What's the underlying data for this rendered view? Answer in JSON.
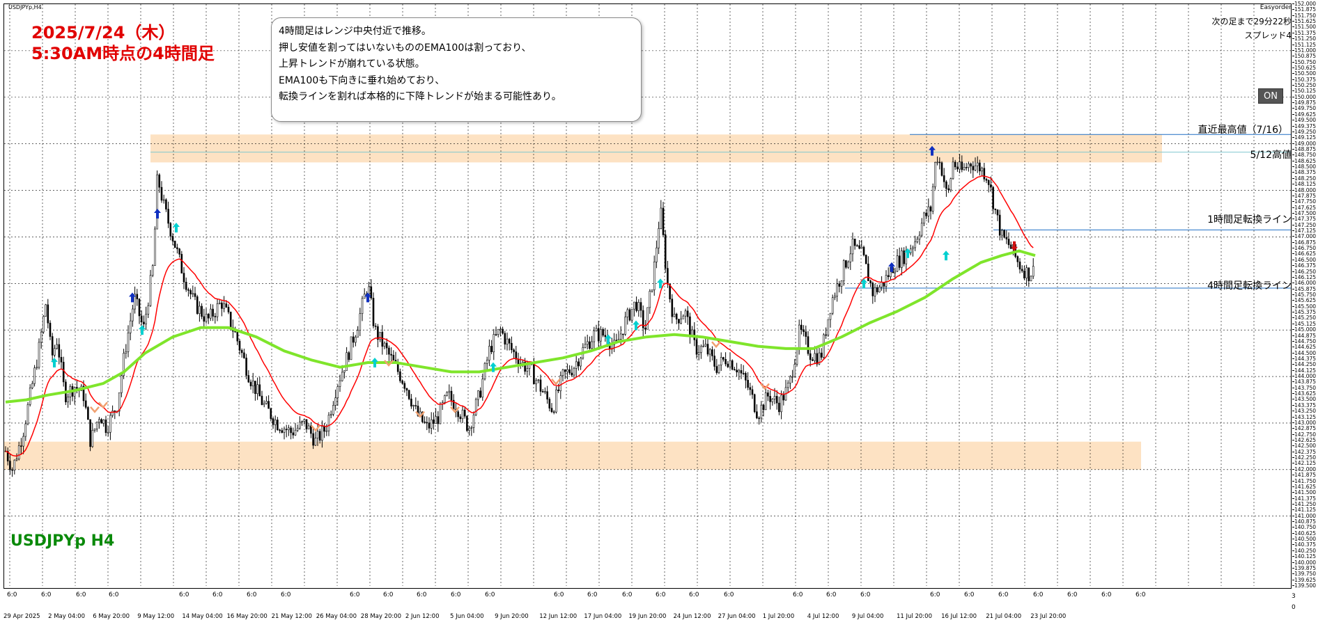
{
  "symbol_small": "USDJPYp,H4",
  "symbol_name": "USDJPYp H4",
  "date_overlay": {
    "line1": "2025/7/24（木）",
    "line2": "5:30AM時点の4時間足"
  },
  "note": {
    "lines": [
      "4時間足はレンジ中央付近で推移。",
      "押し安値を割ってはいないもののEMA100は割っており、",
      "上昇トレンドが崩れている状態。",
      "EMA100も下向きに垂れ始めており、",
      "転換ラインを割れば本格的に下降トレンドが始まる可能性あり。"
    ]
  },
  "top_right": {
    "brand": "Easyorder",
    "next_bar": "次の足まで29分22秒",
    "spread": "スプレッド4"
  },
  "on_button": "ON",
  "line_labels": {
    "recent_high": "直近最高値（7/16）",
    "may12_high": "5/12高値",
    "h1_turn": "1時間足転換ライン",
    "h4_turn": "4時間足転換ライン"
  },
  "colors": {
    "candle": "#000000",
    "ema_fast": "#ff0000",
    "ema100": "#7fe52b",
    "zone": "#fde2c3",
    "level_line": "#1f6fc4",
    "date_text": "#e10000",
    "symbol_text": "#0a8a0a"
  },
  "price_axis": {
    "top": "152.000",
    "bottom": "139.500",
    "step": 0.125
  },
  "time_axis": {
    "top_labels": [
      "6:0",
      "6:0",
      "6:0",
      "6:0",
      "6:0",
      "6:0",
      "6:0",
      "6:0",
      "6:0",
      "6:0",
      "6:0",
      "6:0",
      "6:0",
      "6:0",
      "6:0",
      "6:0",
      "6:0",
      "6:0",
      "6:0",
      "6:0",
      "6:0",
      "6:0",
      "6:0",
      "6:0",
      "6:0",
      "6:0",
      "6:0",
      "6:0",
      "6:0"
    ],
    "bottom_labels": [
      "29 Apr 2025",
      "2 May 04:00",
      "6 May 20:00",
      "9 May 12:00",
      "14 May 04:00",
      "16 May 20:00",
      "21 May 12:00",
      "26 May 04:00",
      "28 May 20:00",
      "2 Jun 12:00",
      "5 Jun 04:00",
      "9 Jun 20:00",
      "12 Jun 12:00",
      "17 Jun 04:00",
      "19 Jun 20:00",
      "24 Jun 12:00",
      "27 Jun 04:00",
      "1 Jul 20:00",
      "4 Jul 12:00",
      "9 Jul 04:00",
      "11 Jul 20:00",
      "16 Jul 12:00",
      "21 Jul 04:00",
      "23 Jul 20:00"
    ],
    "right_numbers": [
      "3",
      "0"
    ]
  },
  "chart_data": {
    "type": "candlestick",
    "title": "",
    "ylim": [
      139.5,
      152.0
    ],
    "close_path": [
      [
        0,
        142.4
      ],
      [
        10,
        142.0
      ],
      [
        25,
        142.8
      ],
      [
        38,
        143.8
      ],
      [
        48,
        144.6
      ],
      [
        58,
        145.6
      ],
      [
        66,
        144.4
      ],
      [
        74,
        144.8
      ],
      [
        85,
        143.6
      ],
      [
        100,
        143.8
      ],
      [
        112,
        143.6
      ],
      [
        122,
        142.6
      ],
      [
        135,
        143.2
      ],
      [
        145,
        142.9
      ],
      [
        160,
        143.4
      ],
      [
        172,
        144.6
      ],
      [
        185,
        145.7
      ],
      [
        198,
        145.0
      ],
      [
        212,
        146.4
      ],
      [
        218,
        148.3
      ],
      [
        228,
        147.6
      ],
      [
        240,
        147.0
      ],
      [
        255,
        146.2
      ],
      [
        270,
        145.6
      ],
      [
        290,
        145.2
      ],
      [
        310,
        145.6
      ],
      [
        330,
        144.9
      ],
      [
        350,
        144.0
      ],
      [
        370,
        143.4
      ],
      [
        390,
        143.0
      ],
      [
        410,
        142.8
      ],
      [
        430,
        143.0
      ],
      [
        445,
        142.6
      ],
      [
        460,
        142.9
      ],
      [
        475,
        143.8
      ],
      [
        490,
        144.4
      ],
      [
        505,
        145.1
      ],
      [
        520,
        146.0
      ],
      [
        530,
        145.0
      ],
      [
        545,
        144.6
      ],
      [
        560,
        144.2
      ],
      [
        575,
        143.8
      ],
      [
        590,
        143.2
      ],
      [
        605,
        142.9
      ],
      [
        620,
        143.1
      ],
      [
        635,
        143.6
      ],
      [
        650,
        143.3
      ],
      [
        665,
        142.9
      ],
      [
        680,
        143.6
      ],
      [
        695,
        144.6
      ],
      [
        710,
        145.0
      ],
      [
        725,
        144.6
      ],
      [
        740,
        144.3
      ],
      [
        755,
        144.1
      ],
      [
        770,
        143.7
      ],
      [
        785,
        143.3
      ],
      [
        800,
        144.0
      ],
      [
        815,
        144.2
      ],
      [
        830,
        144.6
      ],
      [
        845,
        144.9
      ],
      [
        860,
        144.9
      ],
      [
        875,
        144.6
      ],
      [
        890,
        145.2
      ],
      [
        905,
        145.6
      ],
      [
        918,
        145.0
      ],
      [
        930,
        146.2
      ],
      [
        940,
        147.6
      ],
      [
        950,
        146.0
      ],
      [
        960,
        145.2
      ],
      [
        975,
        145.4
      ],
      [
        990,
        144.6
      ],
      [
        1005,
        144.6
      ],
      [
        1020,
        144.2
      ],
      [
        1035,
        144.4
      ],
      [
        1050,
        144.2
      ],
      [
        1065,
        143.8
      ],
      [
        1080,
        143.2
      ],
      [
        1095,
        143.6
      ],
      [
        1110,
        143.4
      ],
      [
        1125,
        143.8
      ],
      [
        1140,
        145.0
      ],
      [
        1155,
        144.5
      ],
      [
        1170,
        144.4
      ],
      [
        1185,
        145.6
      ],
      [
        1200,
        146.2
      ],
      [
        1215,
        146.8
      ],
      [
        1230,
        146.6
      ],
      [
        1245,
        145.8
      ],
      [
        1260,
        146.0
      ],
      [
        1275,
        146.4
      ],
      [
        1290,
        146.6
      ],
      [
        1305,
        146.9
      ],
      [
        1318,
        147.4
      ],
      [
        1328,
        147.6
      ],
      [
        1336,
        148.8
      ],
      [
        1345,
        148.4
      ],
      [
        1352,
        147.8
      ],
      [
        1360,
        148.6
      ],
      [
        1372,
        148.4
      ],
      [
        1385,
        148.6
      ],
      [
        1398,
        148.5
      ],
      [
        1410,
        148.3
      ],
      [
        1420,
        147.6
      ],
      [
        1430,
        147.0
      ],
      [
        1442,
        146.8
      ],
      [
        1455,
        146.4
      ],
      [
        1468,
        146.2
      ],
      [
        1478,
        146.3
      ]
    ],
    "series": [
      {
        "values": [
          [
            0,
            143.45
          ],
          [
            30,
            143.5
          ],
          [
            60,
            143.6
          ],
          [
            100,
            143.7
          ],
          [
            140,
            143.85
          ],
          [
            170,
            144.1
          ],
          [
            200,
            144.5
          ],
          [
            240,
            144.85
          ],
          [
            280,
            145.05
          ],
          [
            320,
            145.05
          ],
          [
            360,
            144.85
          ],
          [
            400,
            144.55
          ],
          [
            440,
            144.35
          ],
          [
            480,
            144.2
          ],
          [
            520,
            144.3
          ],
          [
            560,
            144.3
          ],
          [
            600,
            144.2
          ],
          [
            640,
            144.1
          ],
          [
            680,
            144.1
          ],
          [
            720,
            144.2
          ],
          [
            760,
            144.3
          ],
          [
            800,
            144.4
          ],
          [
            840,
            144.55
          ],
          [
            880,
            144.75
          ],
          [
            920,
            144.85
          ],
          [
            960,
            144.9
          ],
          [
            1000,
            144.85
          ],
          [
            1040,
            144.75
          ],
          [
            1080,
            144.65
          ],
          [
            1120,
            144.6
          ],
          [
            1160,
            144.6
          ],
          [
            1200,
            144.85
          ],
          [
            1240,
            145.15
          ],
          [
            1280,
            145.4
          ],
          [
            1320,
            145.7
          ],
          [
            1360,
            146.1
          ],
          [
            1400,
            146.45
          ],
          [
            1430,
            146.6
          ],
          [
            1455,
            146.7
          ],
          [
            1478,
            146.6
          ]
        ]
      }
    ]
  }
}
